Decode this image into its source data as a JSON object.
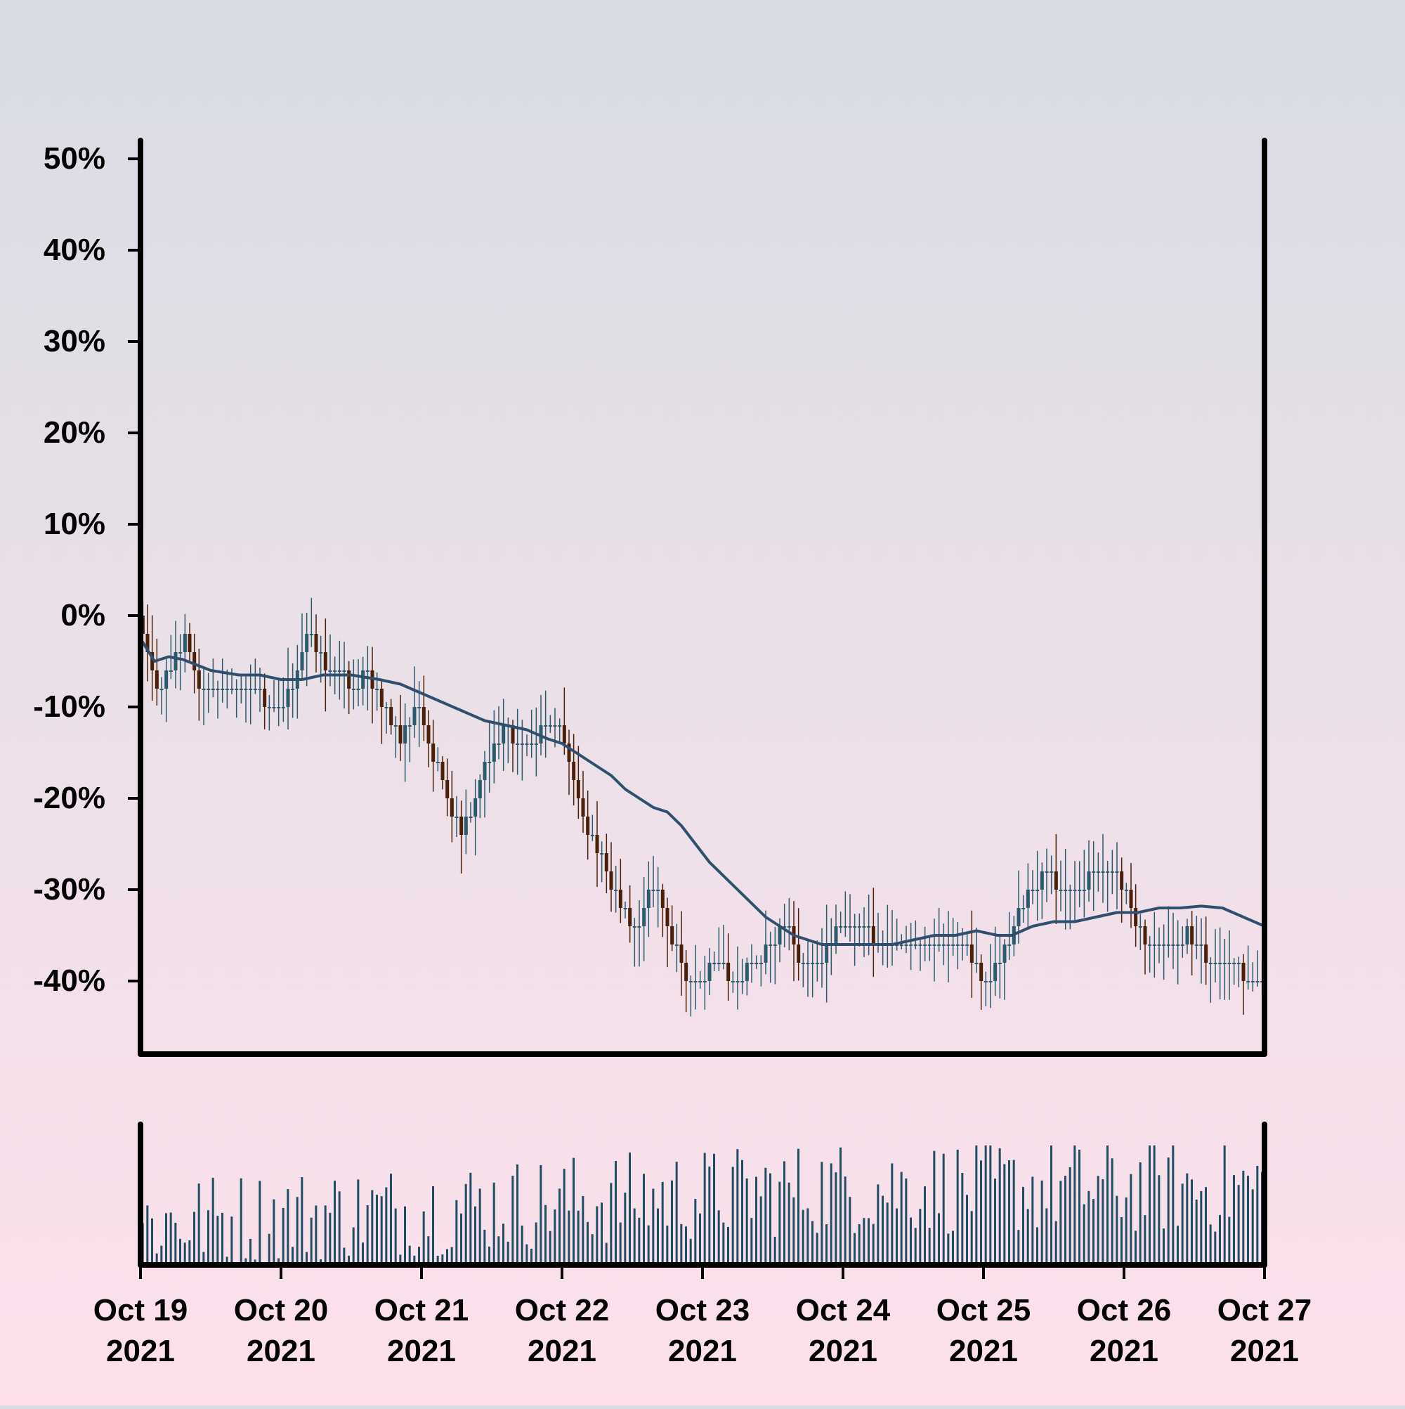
{
  "chart_data": {
    "type": "candlestick",
    "x_start": "Oct 19 2021",
    "x_end": "Oct 27 2021",
    "xlim": [
      0,
      8
    ],
    "ylim": [
      -48,
      52
    ],
    "yticks": [
      50,
      40,
      30,
      20,
      10,
      0,
      -10,
      -20,
      -30,
      -40
    ],
    "ytick_labels": [
      "50%",
      "40%",
      "30%",
      "20%",
      "10%",
      "0%",
      "-10%",
      "-20%",
      "-30%",
      "-40%"
    ],
    "xticks": [
      {
        "pos": 0,
        "line1": "Oct 19",
        "line2": "2021"
      },
      {
        "pos": 1,
        "line1": "Oct 20",
        "line2": "2021"
      },
      {
        "pos": 2,
        "line1": "Oct 21",
        "line2": "2021"
      },
      {
        "pos": 3,
        "line1": "Oct 22",
        "line2": "2021"
      },
      {
        "pos": 4,
        "line1": "Oct 23",
        "line2": "2021"
      },
      {
        "pos": 5,
        "line1": "Oct 24",
        "line2": "2021"
      },
      {
        "pos": 6,
        "line1": "Oct 25",
        "line2": "2021"
      },
      {
        "pos": 7,
        "line1": "Oct 26",
        "line2": "2021"
      },
      {
        "pos": 8,
        "line1": "Oct 27",
        "line2": "2021"
      }
    ],
    "close_path": [
      [
        0,
        0
      ],
      [
        0.05,
        -5
      ],
      [
        0.12,
        -8
      ],
      [
        0.22,
        -5
      ],
      [
        0.32,
        -2
      ],
      [
        0.45,
        -9
      ],
      [
        0.55,
        -8
      ],
      [
        0.7,
        -7
      ],
      [
        0.82,
        -8
      ],
      [
        0.95,
        -11
      ],
      [
        1.05,
        -9
      ],
      [
        1.15,
        -5
      ],
      [
        1.2,
        -2
      ],
      [
        1.3,
        -5
      ],
      [
        1.4,
        -6
      ],
      [
        1.5,
        -8
      ],
      [
        1.62,
        -6
      ],
      [
        1.75,
        -11
      ],
      [
        1.85,
        -14
      ],
      [
        1.98,
        -9
      ],
      [
        2.08,
        -15
      ],
      [
        2.2,
        -21
      ],
      [
        2.28,
        -24
      ],
      [
        2.4,
        -19
      ],
      [
        2.5,
        -15
      ],
      [
        2.6,
        -12
      ],
      [
        2.72,
        -15
      ],
      [
        2.85,
        -13
      ],
      [
        3.0,
        -12
      ],
      [
        3.1,
        -19
      ],
      [
        3.2,
        -24
      ],
      [
        3.3,
        -27
      ],
      [
        3.42,
        -32
      ],
      [
        3.52,
        -35
      ],
      [
        3.6,
        -30
      ],
      [
        3.68,
        -29
      ],
      [
        3.8,
        -36
      ],
      [
        3.9,
        -41
      ],
      [
        4.05,
        -39
      ],
      [
        4.15,
        -39
      ],
      [
        4.22,
        -41
      ],
      [
        4.35,
        -38
      ],
      [
        4.5,
        -36
      ],
      [
        4.6,
        -33
      ],
      [
        4.7,
        -38
      ],
      [
        4.8,
        -38
      ],
      [
        4.95,
        -35
      ],
      [
        5.0,
        -33
      ],
      [
        5.1,
        -35
      ],
      [
        5.2,
        -35
      ],
      [
        5.35,
        -36
      ],
      [
        5.5,
        -35
      ],
      [
        5.6,
        -36
      ],
      [
        5.7,
        -35
      ],
      [
        5.82,
        -36
      ],
      [
        5.9,
        -37
      ],
      [
        6.0,
        -40
      ],
      [
        6.12,
        -38
      ],
      [
        6.25,
        -33
      ],
      [
        6.35,
        -30
      ],
      [
        6.45,
        -28
      ],
      [
        6.6,
        -31
      ],
      [
        6.72,
        -29
      ],
      [
        6.8,
        -28
      ],
      [
        6.95,
        -29
      ],
      [
        7.05,
        -32
      ],
      [
        7.12,
        -35
      ],
      [
        7.22,
        -37
      ],
      [
        7.35,
        -36
      ],
      [
        7.45,
        -35
      ],
      [
        7.55,
        -37
      ],
      [
        7.7,
        -38
      ],
      [
        7.82,
        -39
      ],
      [
        7.92,
        -40
      ],
      [
        8.0,
        -40
      ]
    ],
    "moving_average": [
      [
        0,
        -2.5
      ],
      [
        0.1,
        -5
      ],
      [
        0.2,
        -4.5
      ],
      [
        0.3,
        -4.8
      ],
      [
        0.5,
        -6
      ],
      [
        0.7,
        -6.5
      ],
      [
        0.85,
        -6.5
      ],
      [
        1.0,
        -7
      ],
      [
        1.15,
        -7
      ],
      [
        1.3,
        -6.5
      ],
      [
        1.5,
        -6.5
      ],
      [
        1.7,
        -7
      ],
      [
        1.85,
        -7.5
      ],
      [
        2.0,
        -8.5
      ],
      [
        2.15,
        -9.5
      ],
      [
        2.3,
        -10.5
      ],
      [
        2.45,
        -11.5
      ],
      [
        2.6,
        -12
      ],
      [
        2.75,
        -12.5
      ],
      [
        2.9,
        -13.5
      ],
      [
        3.0,
        -14
      ],
      [
        3.1,
        -15
      ],
      [
        3.2,
        -16
      ],
      [
        3.35,
        -17.5
      ],
      [
        3.45,
        -19
      ],
      [
        3.55,
        -20
      ],
      [
        3.65,
        -21
      ],
      [
        3.75,
        -21.5
      ],
      [
        3.85,
        -23
      ],
      [
        3.95,
        -25
      ],
      [
        4.05,
        -27
      ],
      [
        4.15,
        -28.5
      ],
      [
        4.25,
        -30
      ],
      [
        4.35,
        -31.5
      ],
      [
        4.45,
        -33
      ],
      [
        4.55,
        -34
      ],
      [
        4.65,
        -35
      ],
      [
        4.75,
        -35.5
      ],
      [
        4.85,
        -36
      ],
      [
        4.95,
        -36
      ],
      [
        5.05,
        -36
      ],
      [
        5.2,
        -36
      ],
      [
        5.35,
        -36
      ],
      [
        5.5,
        -35.5
      ],
      [
        5.65,
        -35
      ],
      [
        5.8,
        -35
      ],
      [
        5.95,
        -34.5
      ],
      [
        6.1,
        -35
      ],
      [
        6.2,
        -35
      ],
      [
        6.35,
        -34
      ],
      [
        6.5,
        -33.5
      ],
      [
        6.65,
        -33.5
      ],
      [
        6.8,
        -33
      ],
      [
        6.95,
        -32.5
      ],
      [
        7.1,
        -32.5
      ],
      [
        7.25,
        -32
      ],
      [
        7.4,
        -32
      ],
      [
        7.55,
        -31.8
      ],
      [
        7.7,
        -32
      ],
      [
        7.85,
        -33
      ],
      [
        8.0,
        -34
      ]
    ],
    "n_candles": 240,
    "n_volume_bars": 240,
    "colors": {
      "up_candle": "#2a5a6c",
      "down_candle": "#4a2008",
      "moving_average": "#2f4f6e",
      "volume": "#1f4e64",
      "axes": "#000000"
    },
    "volume_scale_note": "",
    "grid": false,
    "legend": "none"
  }
}
